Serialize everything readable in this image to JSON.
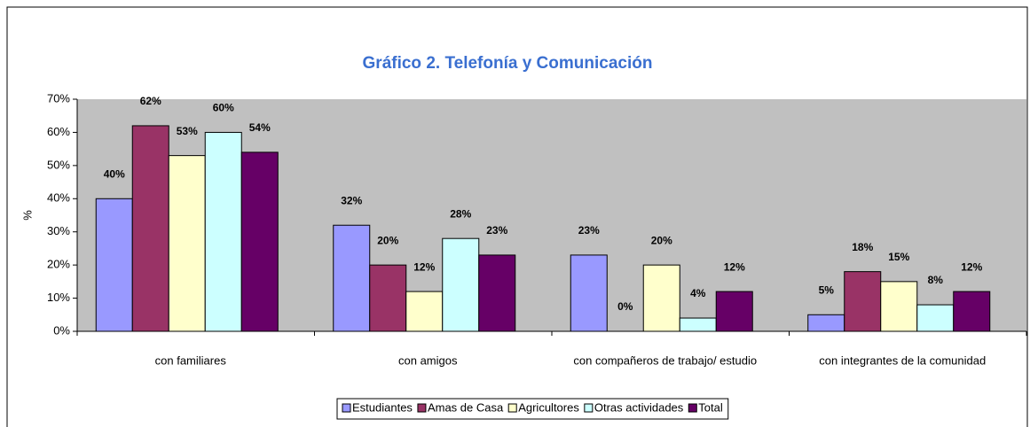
{
  "chart_data": {
    "type": "bar",
    "title": "Gráfico 2. Telefonía y Comunicación",
    "y_label": "%",
    "categories": [
      "con familiares",
      "con amigos",
      "con compañeros de trabajo/ estudio",
      "con integrantes de la comunidad"
    ],
    "series": [
      {
        "name": "Estudiantes",
        "color": "#9999ff",
        "values": [
          40,
          32,
          23,
          5
        ],
        "value_labels": [
          "40%",
          "32%",
          "23%",
          "5%"
        ]
      },
      {
        "name": "Amas de Casa",
        "color": "#993366",
        "values": [
          62,
          20,
          0,
          18
        ],
        "value_labels": [
          "62%",
          "20%",
          "0%",
          "18%"
        ]
      },
      {
        "name": "Agricultores",
        "color": "#ffffcc",
        "values": [
          53,
          12,
          20,
          15
        ],
        "value_labels": [
          "53%",
          "12%",
          "20%",
          "15%"
        ]
      },
      {
        "name": "Otras actividades",
        "color": "#ccffff",
        "values": [
          60,
          28,
          4,
          8
        ],
        "value_labels": [
          "60%",
          "28%",
          "4%",
          "8%"
        ]
      },
      {
        "name": "Total",
        "color": "#660066",
        "values": [
          54,
          23,
          12,
          12
        ],
        "value_labels": [
          "54%",
          "23%",
          "12%",
          "12%"
        ]
      }
    ],
    "ylim": [
      0,
      70
    ],
    "yticks": [
      {
        "value": 0,
        "label": "0%"
      },
      {
        "value": 10,
        "label": "10%"
      },
      {
        "value": 20,
        "label": "20%"
      },
      {
        "value": 30,
        "label": "30%"
      },
      {
        "value": 40,
        "label": "40%"
      },
      {
        "value": 50,
        "label": "50%"
      },
      {
        "value": 60,
        "label": "60%"
      },
      {
        "value": 70,
        "label": "70%"
      }
    ],
    "grid": false,
    "plot_background": "#c0c0c0",
    "legend": "bottom"
  }
}
